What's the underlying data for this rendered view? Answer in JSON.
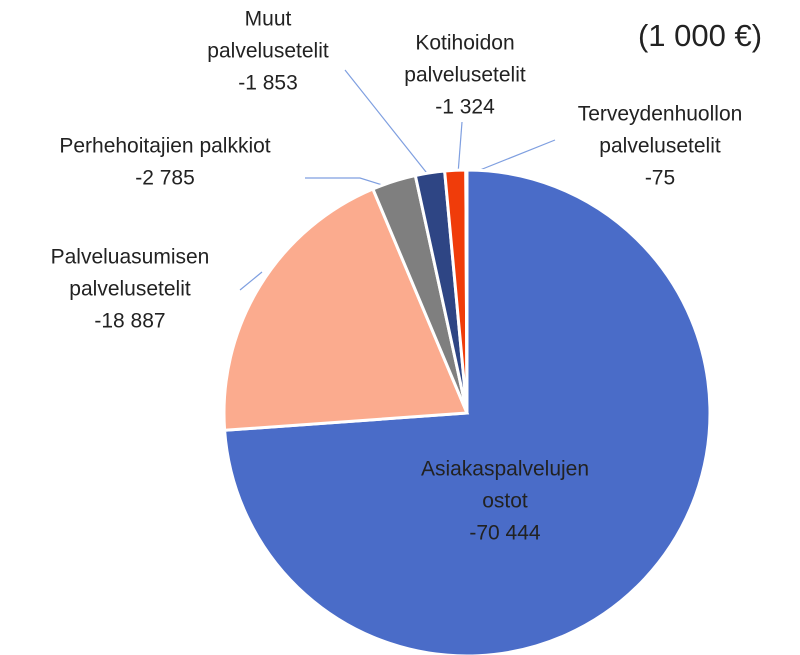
{
  "chart_data": {
    "type": "pie",
    "title": "(1 000 €)",
    "categories": [
      [
        "Asiakaspalvelujen",
        "ostot"
      ],
      [
        "Palveluasumisen",
        "palvelusetelit"
      ],
      [
        "Perhehoitajien palkkiot"
      ],
      [
        "Muut",
        "palvelusetelit"
      ],
      [
        "Kotihoidon",
        "palvelusetelit"
      ],
      [
        "Terveydenhuollon",
        "palvelusetelit"
      ]
    ],
    "values": [
      -70444,
      -18887,
      -2785,
      -1853,
      -1324,
      -75
    ],
    "value_labels": [
      "-70 444",
      "-18 887",
      "-2 785",
      "-1 853",
      "-1 324",
      "-75"
    ],
    "colors": [
      "#4a6cc8",
      "#fbab8e",
      "#7f7f7f",
      "#2e4584",
      "#f03c0a",
      "#5b9bd5"
    ]
  }
}
